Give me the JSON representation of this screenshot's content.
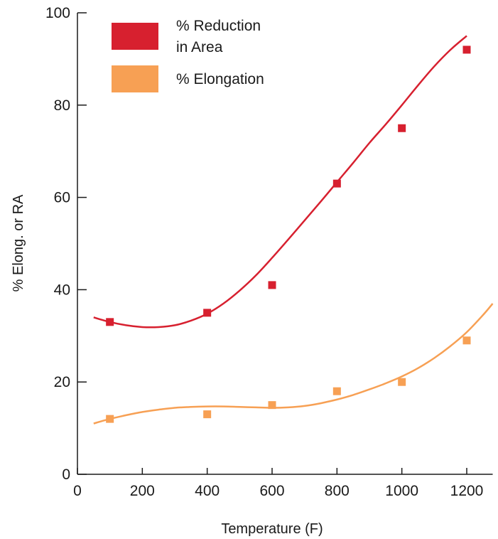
{
  "chart_data": {
    "type": "scatter",
    "title": "",
    "xlabel": "Temperature (F)",
    "ylabel": "% Elong. or RA",
    "xlim": [
      0,
      1280
    ],
    "ylim": [
      0,
      100
    ],
    "xticks": [
      0,
      200,
      400,
      600,
      800,
      1000,
      1200
    ],
    "yticks": [
      0,
      20,
      40,
      60,
      80,
      100
    ],
    "xtick_labels": [
      "0",
      "200",
      "400",
      "600",
      "800",
      "1000",
      "1200"
    ],
    "ytick_labels": [
      "0",
      "20",
      "40",
      "60",
      "80",
      "100"
    ],
    "grid": false,
    "legend_position": "top-left",
    "series": [
      {
        "name": "% Reduction in Area",
        "legend_lines": [
          "% Reduction",
          "in Area"
        ],
        "color": "#d7202f",
        "marker": "square",
        "x": [
          100,
          400,
          600,
          800,
          1000,
          1200
        ],
        "y": [
          33,
          35,
          41,
          63,
          75,
          92
        ],
        "trend_x": [
          50,
          100,
          150,
          200,
          250,
          300,
          350,
          400,
          450,
          500,
          550,
          600,
          650,
          700,
          750,
          800,
          850,
          900,
          950,
          1000,
          1050,
          1100,
          1150,
          1200
        ],
        "trend_y": [
          34,
          33,
          32.3,
          31.9,
          31.9,
          32.3,
          33.3,
          34.8,
          37,
          39.8,
          43.1,
          46.9,
          50.9,
          55,
          59.1,
          63.3,
          67.5,
          71.8,
          75.8,
          80,
          84.3,
          88.4,
          92,
          95
        ]
      },
      {
        "name": "% Elongation",
        "legend_lines": [
          "% Elongation"
        ],
        "color": "#f7a054",
        "marker": "square",
        "x": [
          100,
          400,
          600,
          800,
          1000,
          1200
        ],
        "y": [
          12,
          13,
          15,
          18,
          20,
          29
        ],
        "trend_x": [
          50,
          100,
          150,
          200,
          250,
          300,
          350,
          400,
          450,
          500,
          550,
          600,
          650,
          700,
          750,
          800,
          850,
          900,
          950,
          1000,
          1050,
          1100,
          1150,
          1200,
          1250,
          1280
        ],
        "trend_y": [
          11,
          12,
          12.8,
          13.5,
          14,
          14.4,
          14.6,
          14.7,
          14.7,
          14.6,
          14.5,
          14.4,
          14.5,
          14.8,
          15.4,
          16.2,
          17.2,
          18.4,
          19.7,
          21.2,
          23,
          25.2,
          27.8,
          30.8,
          34.5,
          37
        ]
      }
    ]
  },
  "legend": {
    "reduction_line1": "% Reduction",
    "reduction_line2": "in Area",
    "elongation": "% Elongation"
  }
}
